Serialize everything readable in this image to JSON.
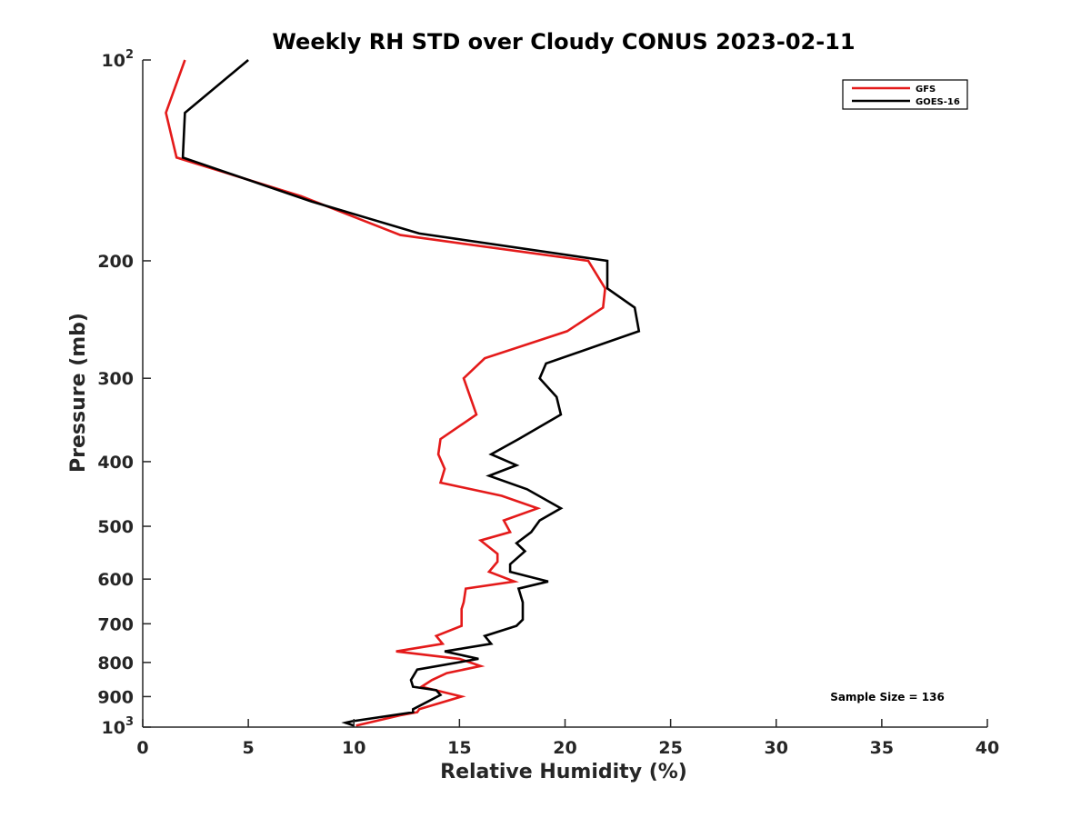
{
  "chart_data": {
    "type": "line",
    "title": "Weekly RH STD over Cloudy CONUS 2023-02-11",
    "xlabel": "Relative Humidity (%)",
    "ylabel": "Pressure (mb)",
    "xlim": [
      0,
      40
    ],
    "ylim": [
      100,
      1000
    ],
    "y_scale": "log",
    "y_reversed": true,
    "grid": false,
    "legend_position": "top-right",
    "x_ticks": [
      0,
      5,
      10,
      15,
      20,
      25,
      30,
      35,
      40
    ],
    "y_ticks": [
      {
        "value": 100,
        "label": "10",
        "exp": "2"
      },
      {
        "value": 200,
        "label": "200"
      },
      {
        "value": 300,
        "label": "300"
      },
      {
        "value": 400,
        "label": "400"
      },
      {
        "value": 500,
        "label": "500"
      },
      {
        "value": 600,
        "label": "600"
      },
      {
        "value": 700,
        "label": "700"
      },
      {
        "value": 800,
        "label": "800"
      },
      {
        "value": 900,
        "label": "900"
      },
      {
        "value": 1000,
        "label": "10",
        "exp": "3"
      }
    ],
    "annotation": "Sample Size = 136",
    "series": [
      {
        "name": "GFS",
        "color": "#e41a1a",
        "points": [
          [
            2.0,
            100
          ],
          [
            1.1,
            120
          ],
          [
            1.6,
            140
          ],
          [
            7.5,
            160
          ],
          [
            12.2,
            183
          ],
          [
            21.1,
            200
          ],
          [
            21.9,
            220
          ],
          [
            21.8,
            235
          ],
          [
            20.1,
            255
          ],
          [
            16.2,
            280
          ],
          [
            15.2,
            300
          ],
          [
            15.8,
            340
          ],
          [
            14.1,
            370
          ],
          [
            14.0,
            390
          ],
          [
            14.3,
            410
          ],
          [
            14.1,
            430
          ],
          [
            17.0,
            450
          ],
          [
            18.7,
            470
          ],
          [
            17.1,
            490
          ],
          [
            17.4,
            510
          ],
          [
            16.0,
            525
          ],
          [
            16.8,
            550
          ],
          [
            16.8,
            565
          ],
          [
            16.4,
            585
          ],
          [
            17.6,
            605
          ],
          [
            15.3,
            620
          ],
          [
            15.2,
            650
          ],
          [
            15.1,
            665
          ],
          [
            15.1,
            705
          ],
          [
            13.9,
            730
          ],
          [
            14.2,
            750
          ],
          [
            12.0,
            770
          ],
          [
            15.0,
            790
          ],
          [
            16.0,
            810
          ],
          [
            14.4,
            830
          ],
          [
            13.7,
            850
          ],
          [
            13.2,
            870
          ],
          [
            15.1,
            900
          ],
          [
            13.1,
            940
          ],
          [
            13.0,
            950
          ],
          [
            12.2,
            960
          ],
          [
            10.1,
            995
          ]
        ]
      },
      {
        "name": "GOES-16",
        "color": "#000000",
        "points": [
          [
            5.0,
            100
          ],
          [
            2.0,
            120
          ],
          [
            1.9,
            140
          ],
          [
            8.0,
            163
          ],
          [
            13.1,
            182
          ],
          [
            22.0,
            200
          ],
          [
            22.0,
            220
          ],
          [
            23.3,
            235
          ],
          [
            23.5,
            255
          ],
          [
            19.1,
            285
          ],
          [
            18.8,
            300
          ],
          [
            19.6,
            320
          ],
          [
            19.8,
            340
          ],
          [
            17.8,
            370
          ],
          [
            16.5,
            390
          ],
          [
            17.7,
            405
          ],
          [
            16.4,
            420
          ],
          [
            18.2,
            440
          ],
          [
            19.8,
            470
          ],
          [
            18.8,
            490
          ],
          [
            18.4,
            510
          ],
          [
            17.7,
            530
          ],
          [
            18.1,
            545
          ],
          [
            17.4,
            570
          ],
          [
            17.4,
            585
          ],
          [
            19.2,
            605
          ],
          [
            17.8,
            620
          ],
          [
            18.0,
            650
          ],
          [
            18.0,
            690
          ],
          [
            17.7,
            705
          ],
          [
            16.2,
            730
          ],
          [
            16.5,
            750
          ],
          [
            14.3,
            770
          ],
          [
            15.9,
            790
          ],
          [
            13.0,
            820
          ],
          [
            12.7,
            850
          ],
          [
            12.8,
            870
          ],
          [
            13.9,
            880
          ],
          [
            14.1,
            895
          ],
          [
            12.8,
            940
          ],
          [
            12.8,
            950
          ],
          [
            9.9,
            980
          ],
          [
            9.6,
            985
          ],
          [
            10.0,
            995
          ]
        ]
      }
    ]
  }
}
